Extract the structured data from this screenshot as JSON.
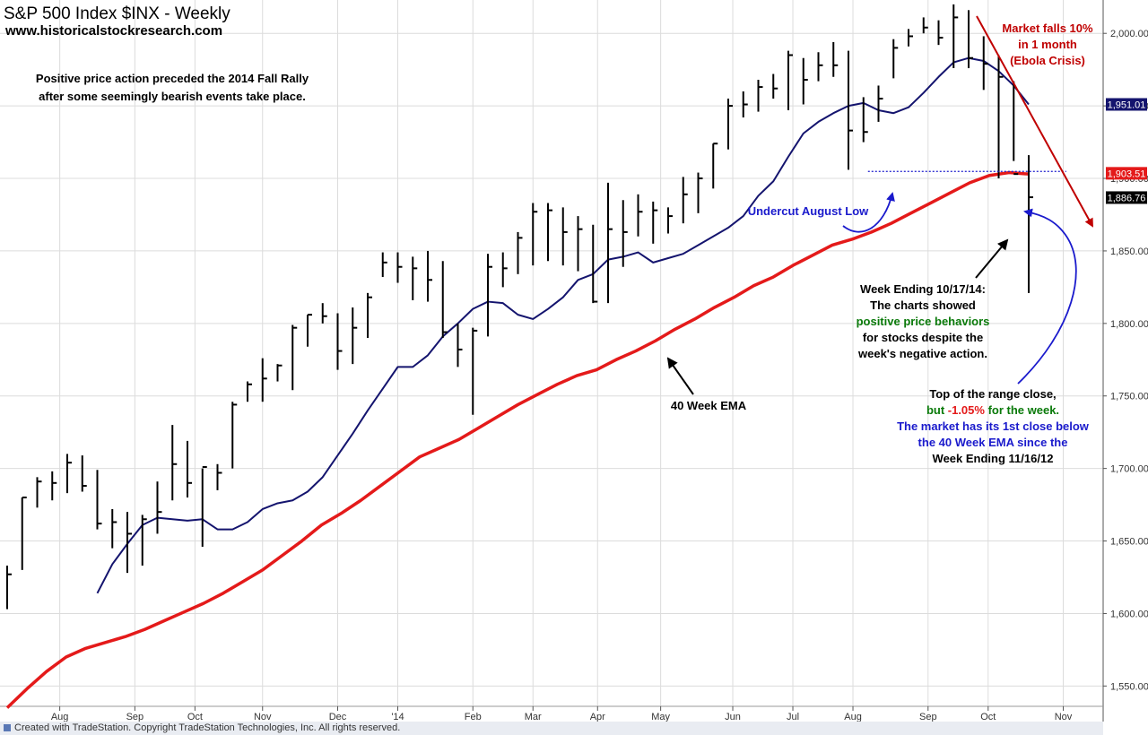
{
  "header": {
    "title": "S&P 500 Index  $INX - Weekly",
    "website": "www.historicalstockresearch.com"
  },
  "annotations": {
    "intro_line1": "Positive price action preceded the 2014 Fall Rally",
    "intro_line2": "after some seemingly bearish events take place.",
    "falls_line1": "Market falls 10%",
    "falls_line2": "in 1 month",
    "falls_line3": "(Ebola Crisis)",
    "undercut": "Undercut August Low",
    "ema_label": "40 Week EMA",
    "week_line1": "Week Ending 10/17/14:",
    "week_line2": "The charts showed",
    "week_line3": "positive price behaviors",
    "week_line4": "for stocks despite the",
    "week_line5": "week's negative action.",
    "close_line1": "Top of the range close,",
    "close_line2a": "but ",
    "close_line2b": "-1.05%",
    "close_line2c": " for the week.",
    "close_line3": "The market has its 1st close below",
    "close_line4": "the 40 Week EMA since the",
    "close_line5": "Week Ending 11/16/12"
  },
  "footer": {
    "text": "Created with TradeStation.  Copyright TradeStation Technologies, Inc.  All rights reserved."
  },
  "colors": {
    "price_bars": "#000000",
    "short_ma": "#14146e",
    "ema40": "#e41a1a",
    "annotation_blue": "#1a1acc",
    "annotation_red": "#c00000",
    "annotation_green": "#0a7a0a",
    "trend_arrow": "#c00000",
    "gridline": "#dcdcdc"
  },
  "chart_data": {
    "type": "ohlc",
    "title": "S&P 500 Index  $INX - Weekly",
    "y_axis": {
      "ticks": [
        1550,
        1600,
        1650,
        1700,
        1750,
        1800,
        1850,
        1900,
        1950,
        2000
      ],
      "tick_labels": [
        "1,550.00",
        "1,600.00",
        "1,650.00",
        "1,700.00",
        "1,750.00",
        "1,800.00",
        "1,850.00",
        "1,900.00",
        "1,950.00",
        "2,000.00"
      ],
      "ylim": [
        1536,
        2023
      ],
      "grid": true
    },
    "x_axis": {
      "labels": [
        "Aug",
        "Sep",
        "Oct",
        "Nov",
        "Dec",
        "'14",
        "Feb",
        "Mar",
        "Apr",
        "May",
        "Jun",
        "Jul",
        "Aug",
        "Sep",
        "Oct",
        "Nov"
      ],
      "label_week_index": [
        3.5,
        8.5,
        12.5,
        17,
        22,
        26,
        31,
        35,
        39.3,
        43.5,
        48.3,
        52.3,
        56.3,
        61.3,
        65.3,
        70.3
      ],
      "xlim": [
        0,
        74
      ]
    },
    "price_tags": [
      {
        "label": "1,951.01",
        "value": 1951.01,
        "bg": "#14146e"
      },
      {
        "label": "1,903.51",
        "value": 1903.51,
        "bg": "#e41a1a"
      },
      {
        "label": "1,886.76",
        "value": 1886.76,
        "bg": "#000000"
      }
    ],
    "august_low": {
      "value": 1904.8,
      "from_week": 57.3,
      "to_week": 70.5
    },
    "bars": [
      [
        1633,
        1603,
        1627
      ],
      [
        1680,
        1630,
        1680
      ],
      [
        1694,
        1673,
        1691
      ],
      [
        1698,
        1678,
        1690
      ],
      [
        1710,
        1683,
        1704
      ],
      [
        1709,
        1684,
        1688
      ],
      [
        1699,
        1658,
        1662
      ],
      [
        1672,
        1645,
        1663
      ],
      [
        1670,
        1628,
        1655
      ],
      [
        1668,
        1633,
        1665
      ],
      [
        1691,
        1655,
        1670
      ],
      [
        1730,
        1678,
        1703
      ],
      [
        1719,
        1680,
        1690
      ],
      [
        1700,
        1646,
        1701
      ],
      [
        1703,
        1685,
        1697
      ],
      [
        1746,
        1700,
        1744
      ],
      [
        1760,
        1746,
        1758
      ],
      [
        1776,
        1746,
        1762
      ],
      [
        1772,
        1760,
        1771
      ],
      [
        1799,
        1754,
        1797
      ],
      [
        1806,
        1784,
        1806
      ],
      [
        1814,
        1800,
        1805
      ],
      [
        1807,
        1768,
        1781
      ],
      [
        1811,
        1772,
        1797
      ],
      [
        1821,
        1790,
        1818
      ],
      [
        1849,
        1832,
        1842
      ],
      [
        1849,
        1828,
        1839
      ],
      [
        1846,
        1816,
        1838
      ],
      [
        1850,
        1815,
        1830
      ],
      [
        1843,
        1790,
        1794
      ],
      [
        1800,
        1770,
        1782
      ],
      [
        1797,
        1737,
        1795
      ],
      [
        1848,
        1791,
        1839
      ],
      [
        1849,
        1825,
        1838
      ],
      [
        1863,
        1834,
        1859
      ],
      [
        1883,
        1840,
        1877
      ],
      [
        1883,
        1843,
        1878
      ],
      [
        1880,
        1840,
        1863
      ],
      [
        1874,
        1836,
        1865
      ],
      [
        1868,
        1814,
        1815
      ],
      [
        1897,
        1814,
        1865
      ],
      [
        1885,
        1839,
        1863
      ],
      [
        1889,
        1860,
        1877
      ],
      [
        1884,
        1855,
        1878
      ],
      [
        1880,
        1862,
        1874
      ],
      [
        1901,
        1869,
        1889
      ],
      [
        1904,
        1876,
        1900
      ],
      [
        1924,
        1893,
        1924
      ],
      [
        1955,
        1920,
        1950
      ],
      [
        1960,
        1942,
        1951
      ],
      [
        1968,
        1946,
        1963
      ],
      [
        1972,
        1955,
        1962
      ],
      [
        1988,
        1947,
        1985
      ],
      [
        1983,
        1951,
        1968
      ],
      [
        1987,
        1967,
        1978
      ],
      [
        1994,
        1970,
        1978
      ],
      [
        1988,
        1906,
        1933
      ],
      [
        1956,
        1925,
        1932
      ],
      [
        1964,
        1939,
        1955
      ],
      [
        1996,
        1969,
        1990
      ],
      [
        2003,
        1991,
        1998
      ],
      [
        2011,
        2000,
        2004
      ],
      [
        2009,
        1992,
        1997
      ],
      [
        2020,
        1976,
        2011
      ],
      [
        2016,
        1976,
        1983
      ],
      [
        1998,
        1961,
        1979
      ],
      [
        1985,
        1900,
        1970
      ],
      [
        1967,
        1912,
        1903
      ],
      [
        1916,
        1821,
        1887
      ]
    ],
    "series": [
      {
        "name": "",
        "color": "#14146e",
        "values": [
          1614,
          1634,
          1648,
          1661,
          1666,
          1665,
          1664,
          1665,
          1658,
          1658,
          1663,
          1672,
          1676,
          1678,
          1684,
          1694,
          1709,
          1724,
          1740,
          1755,
          1770,
          1770,
          1778,
          1791,
          1800,
          1810,
          1815,
          1814,
          1806,
          1803,
          1810,
          1818,
          1830,
          1834,
          1844,
          1846,
          1849,
          1842,
          1845,
          1848,
          1854,
          1860,
          1866,
          1874,
          1888,
          1898,
          1915,
          1931,
          1939,
          1945,
          1950,
          1952,
          1947,
          1945,
          1949,
          1959,
          1970,
          1980,
          1983,
          1981,
          1974,
          1964,
          1951
        ]
      },
      {
        "name": "40 Week EMA",
        "color": "#e41a1a",
        "values": [
          1535,
          1548,
          1560,
          1570,
          1576,
          1580,
          1584,
          1589,
          1595,
          1601,
          1607,
          1614,
          1622,
          1630,
          1640,
          1650,
          1661,
          1669,
          1678,
          1688,
          1698,
          1708,
          1714,
          1720,
          1728,
          1736,
          1744,
          1751,
          1758,
          1764,
          1768,
          1775,
          1781,
          1788,
          1796,
          1803,
          1811,
          1818,
          1826,
          1832,
          1840,
          1847,
          1854,
          1858,
          1863,
          1869,
          1876,
          1883,
          1890,
          1897,
          1902,
          1904,
          1903
        ]
      }
    ]
  }
}
